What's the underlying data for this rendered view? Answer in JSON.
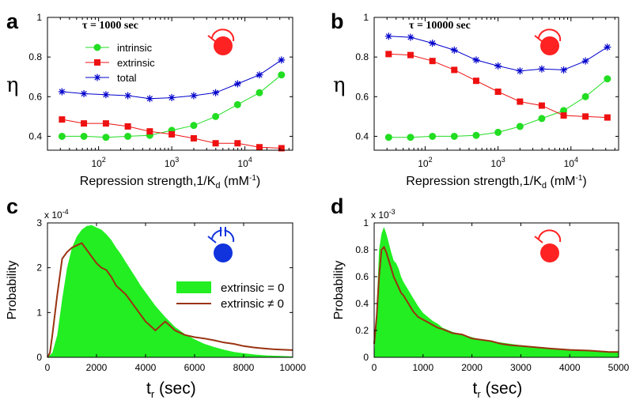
{
  "colors": {
    "intrinsic": "#22dd22",
    "extrinsic": "#ee1111",
    "total": "#0000cc",
    "fill_zero": "#22ee22",
    "line_nonzero": "#993311",
    "motif_red": "#ff2222",
    "motif_blue": "#1133dd"
  },
  "chart_data": [
    {
      "panel": "a",
      "type": "line",
      "title": "τ = 1000 sec",
      "xlabel_prefix": "Repression strength,1/K",
      "xlabel_sub": "d",
      "xlabel_suffix": " (mM",
      "xlabel_sup": "-1",
      "xlabel_end": ")",
      "ylabel": "η",
      "xscale": "log",
      "xlim": [
        20,
        45000
      ],
      "ylim": [
        0.33,
        1.0
      ],
      "xticks": [
        {
          "v": 100,
          "base": "10",
          "exp": "2"
        },
        {
          "v": 1000,
          "base": "10",
          "exp": "3"
        },
        {
          "v": 10000,
          "base": "10",
          "exp": "4"
        }
      ],
      "yticks": [
        "0.4",
        "0.6",
        "0.8",
        "1"
      ],
      "x": [
        31.6,
        63,
        126,
        251,
        501,
        1000,
        2000,
        3980,
        7940,
        15800,
        31600
      ],
      "series": [
        {
          "name": "intrinsic",
          "marker": "circle",
          "values": [
            0.4,
            0.4,
            0.395,
            0.4,
            0.405,
            0.43,
            0.455,
            0.5,
            0.56,
            0.62,
            0.71
          ]
        },
        {
          "name": "extrinsic",
          "marker": "square",
          "values": [
            0.485,
            0.465,
            0.465,
            0.45,
            0.425,
            0.41,
            0.39,
            0.365,
            0.365,
            0.345,
            0.34
          ]
        },
        {
          "name": "total",
          "marker": "star",
          "values": [
            0.625,
            0.615,
            0.61,
            0.605,
            0.59,
            0.595,
            0.605,
            0.62,
            0.665,
            0.71,
            0.785
          ]
        }
      ],
      "legend": [
        "intrinsic",
        "extrinsic",
        "total"
      ]
    },
    {
      "panel": "b",
      "type": "line",
      "title": "τ = 10000 sec",
      "xlabel_prefix": "Repression strength,1/K",
      "xlabel_sub": "d",
      "xlabel_suffix": " (mM",
      "xlabel_sup": "-1",
      "xlabel_end": ")",
      "ylabel": "η",
      "xscale": "log",
      "xlim": [
        20,
        45000
      ],
      "ylim": [
        0.33,
        1.0
      ],
      "xticks": [
        {
          "v": 100,
          "base": "10",
          "exp": "2"
        },
        {
          "v": 1000,
          "base": "10",
          "exp": "3"
        },
        {
          "v": 10000,
          "base": "10",
          "exp": "4"
        }
      ],
      "yticks": [
        "0.4",
        "0.6",
        "0.8",
        "1"
      ],
      "x": [
        31.6,
        63,
        126,
        251,
        501,
        1000,
        2000,
        3980,
        7940,
        15800,
        31600
      ],
      "series": [
        {
          "name": "intrinsic",
          "marker": "circle",
          "values": [
            0.395,
            0.395,
            0.4,
            0.4,
            0.405,
            0.42,
            0.45,
            0.49,
            0.53,
            0.6,
            0.69
          ]
        },
        {
          "name": "extrinsic",
          "marker": "square",
          "values": [
            0.815,
            0.81,
            0.78,
            0.735,
            0.68,
            0.625,
            0.575,
            0.555,
            0.505,
            0.5,
            0.495
          ]
        },
        {
          "name": "total",
          "marker": "star",
          "values": [
            0.905,
            0.9,
            0.87,
            0.835,
            0.785,
            0.755,
            0.73,
            0.74,
            0.735,
            0.78,
            0.85
          ]
        }
      ]
    },
    {
      "panel": "c",
      "type": "area",
      "xlabel_main": "t",
      "xlabel_sub": "r",
      "xlabel_end": " (sec)",
      "ylabel": "Probability",
      "scale_base": "x 10",
      "scale_exp": "-4",
      "xlim": [
        0,
        10000
      ],
      "ylim": [
        0,
        3
      ],
      "xticks": [
        "0",
        "2000",
        "4000",
        "6000",
        "8000",
        "10000"
      ],
      "yticks": [
        "0",
        "1",
        "2",
        "3"
      ],
      "series": [
        {
          "name": "extrinsic = 0",
          "style": "fill",
          "x": [
            0,
            200,
            400,
            600,
            800,
            1000,
            1200,
            1400,
            1600,
            1800,
            2000,
            2200,
            2400,
            2600,
            2800,
            3000,
            3200,
            3400,
            3600,
            3800,
            4000,
            4400,
            4800,
            5200,
            5600,
            6000,
            6400,
            6800,
            7200,
            7600,
            8000,
            8500,
            9000,
            9500,
            10000
          ],
          "values": [
            0,
            0.1,
            0.5,
            1.3,
            2.0,
            2.45,
            2.7,
            2.85,
            2.93,
            2.95,
            2.9,
            2.85,
            2.75,
            2.62,
            2.45,
            2.3,
            2.12,
            1.95,
            1.78,
            1.6,
            1.45,
            1.15,
            0.9,
            0.68,
            0.52,
            0.4,
            0.3,
            0.23,
            0.17,
            0.12,
            0.09,
            0.06,
            0.04,
            0.03,
            0.02
          ]
        },
        {
          "name": "extrinsic ≠ 0",
          "style": "line",
          "x": [
            0,
            100,
            200,
            400,
            600,
            800,
            1000,
            1200,
            1400,
            1600,
            1800,
            2000,
            2200,
            2400,
            2600,
            2800,
            3000,
            3200,
            3400,
            3600,
            3800,
            4000,
            4200,
            4400,
            4600,
            4800,
            5000,
            5200,
            5400,
            5600,
            6000,
            6400,
            6800,
            7200,
            7600,
            8000,
            8400,
            8800,
            9200,
            9600,
            10000
          ],
          "values": [
            0,
            0.1,
            0.5,
            1.4,
            2.2,
            2.35,
            2.45,
            2.5,
            2.55,
            2.4,
            2.25,
            2.1,
            2.0,
            1.95,
            1.8,
            1.6,
            1.5,
            1.4,
            1.25,
            1.1,
            0.95,
            0.8,
            0.7,
            0.6,
            0.7,
            0.8,
            0.7,
            0.6,
            0.55,
            0.5,
            0.45,
            0.42,
            0.38,
            0.33,
            0.3,
            0.25,
            0.22,
            0.2,
            0.18,
            0.17,
            0.16
          ]
        }
      ],
      "legend": [
        "extrinsic = 0",
        "extrinsic ≠ 0"
      ]
    },
    {
      "panel": "d",
      "type": "area",
      "xlabel_main": "t",
      "xlabel_sub": "r",
      "xlabel_end": " (sec)",
      "ylabel": "Probability",
      "scale_base": "x 10",
      "scale_exp": "-3",
      "xlim": [
        0,
        5000
      ],
      "ylim": [
        0,
        1
      ],
      "xticks": [
        "0",
        "1000",
        "2000",
        "3000",
        "4000",
        "5000"
      ],
      "yticks": [
        "0",
        "0.2",
        "0.4",
        "0.6",
        "0.8",
        "1"
      ],
      "series": [
        {
          "name": "extrinsic = 0",
          "style": "fill",
          "x": [
            0,
            50,
            100,
            150,
            200,
            250,
            300,
            350,
            400,
            450,
            500,
            550,
            600,
            700,
            800,
            900,
            1000,
            1100,
            1200,
            1300,
            1400,
            1600,
            1800,
            2000,
            2200,
            2400,
            2600,
            2800,
            3000,
            3300,
            3600,
            4000,
            4400,
            4800,
            5000
          ],
          "values": [
            0,
            0.35,
            0.8,
            0.92,
            0.97,
            0.92,
            0.85,
            0.78,
            0.72,
            0.7,
            0.66,
            0.6,
            0.56,
            0.5,
            0.44,
            0.38,
            0.33,
            0.3,
            0.27,
            0.25,
            0.22,
            0.19,
            0.17,
            0.15,
            0.13,
            0.12,
            0.11,
            0.1,
            0.09,
            0.08,
            0.07,
            0.06,
            0.05,
            0.04,
            0.04
          ]
        },
        {
          "name": "extrinsic ≠ 0",
          "style": "line",
          "x": [
            0,
            50,
            100,
            150,
            200,
            250,
            300,
            350,
            400,
            450,
            500,
            550,
            600,
            700,
            800,
            900,
            1000,
            1100,
            1200,
            1300,
            1400,
            1600,
            1800,
            2000,
            2200,
            2400,
            2600,
            2800,
            3000,
            3300,
            3600,
            4000,
            4400,
            4800,
            5000
          ],
          "values": [
            0.1,
            0.3,
            0.6,
            0.8,
            0.82,
            0.78,
            0.72,
            0.66,
            0.6,
            0.56,
            0.52,
            0.48,
            0.46,
            0.4,
            0.34,
            0.3,
            0.28,
            0.26,
            0.24,
            0.22,
            0.21,
            0.18,
            0.17,
            0.14,
            0.13,
            0.12,
            0.1,
            0.09,
            0.085,
            0.075,
            0.065,
            0.055,
            0.05,
            0.04,
            0.04
          ]
        }
      ]
    }
  ]
}
